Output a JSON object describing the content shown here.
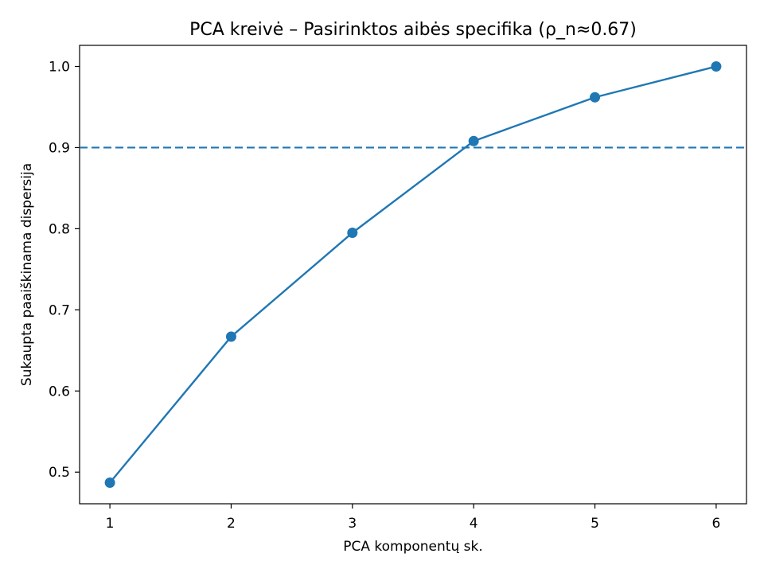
{
  "chart_data": {
    "type": "line",
    "title": "PCA kreivė – Pasirinktos aibės specifika (ρ_n≈0.67)",
    "xlabel": "PCA komponentų sk.",
    "ylabel": "Sukaupta paaiškinama dispersija",
    "x": [
      1,
      2,
      3,
      4,
      5,
      6
    ],
    "series": [
      {
        "values": [
          0.487,
          0.667,
          0.795,
          0.908,
          0.962,
          1.0
        ],
        "color": "#1f77b4",
        "marker": "circle"
      }
    ],
    "reference_line": {
      "y": 0.9,
      "style": "dashed",
      "color": "#1f77b4"
    },
    "xlim": [
      0.75,
      6.25
    ],
    "ylim": [
      0.461,
      1.026
    ],
    "xticks": [
      "1",
      "2",
      "3",
      "4",
      "5",
      "6"
    ],
    "yticks": [
      "0.5",
      "0.6",
      "0.7",
      "0.8",
      "0.9",
      "1.0"
    ],
    "grid": false,
    "legend": "none"
  }
}
